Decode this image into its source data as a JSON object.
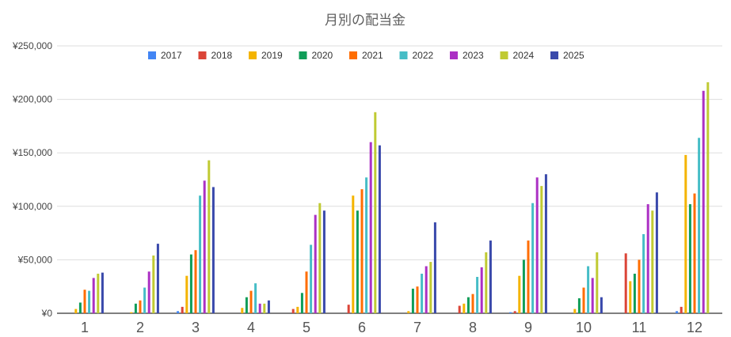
{
  "chart_data": {
    "type": "bar",
    "title": "月別の配当金",
    "xlabel": "",
    "ylabel": "",
    "categories": [
      "1",
      "2",
      "3",
      "4",
      "5",
      "6",
      "7",
      "8",
      "9",
      "10",
      "11",
      "12"
    ],
    "ylim": [
      0,
      250000
    ],
    "yticks": [
      0,
      50000,
      100000,
      150000,
      200000,
      250000
    ],
    "ytick_labels": [
      "¥0",
      "¥50,000",
      "¥100,000",
      "¥150,000",
      "¥200,000",
      "¥250,000"
    ],
    "grid": true,
    "legend_position": "top",
    "series": [
      {
        "name": "2017",
        "color": "#4285f4",
        "values": [
          0,
          0,
          2000,
          0,
          0,
          0,
          0,
          0,
          1000,
          0,
          0,
          2000
        ]
      },
      {
        "name": "2018",
        "color": "#db4437",
        "values": [
          0,
          0,
          6000,
          0,
          4000,
          8000,
          0,
          7000,
          2000,
          0,
          56000,
          6000
        ]
      },
      {
        "name": "2019",
        "color": "#f4b400",
        "values": [
          4000,
          1000,
          35000,
          5000,
          6000,
          110000,
          2000,
          9000,
          35000,
          4000,
          30000,
          148000
        ]
      },
      {
        "name": "2020",
        "color": "#0f9d58",
        "values": [
          10000,
          9000,
          55000,
          15000,
          19000,
          96000,
          23000,
          15000,
          50000,
          14000,
          37000,
          102000
        ]
      },
      {
        "name": "2021",
        "color": "#ff6d00",
        "values": [
          22000,
          12000,
          59000,
          21000,
          39000,
          116000,
          25000,
          18000,
          68000,
          24000,
          50000,
          112000
        ]
      },
      {
        "name": "2022",
        "color": "#46bdc6",
        "values": [
          21000,
          24000,
          110000,
          28000,
          64000,
          127000,
          37000,
          34000,
          103000,
          44000,
          74000,
          164000
        ]
      },
      {
        "name": "2023",
        "color": "#ab30c4",
        "values": [
          33000,
          39000,
          124000,
          9000,
          92000,
          160000,
          44000,
          43000,
          127000,
          33000,
          102000,
          208000
        ]
      },
      {
        "name": "2024",
        "color": "#c0ca33",
        "values": [
          37000,
          54000,
          143000,
          9000,
          103000,
          188000,
          48000,
          57000,
          119000,
          57000,
          96000,
          216000
        ]
      },
      {
        "name": "2025",
        "color": "#3949ab",
        "values": [
          38000,
          65000,
          118000,
          12000,
          96000,
          157000,
          85000,
          68000,
          130000,
          15000,
          113000,
          0
        ]
      }
    ]
  }
}
